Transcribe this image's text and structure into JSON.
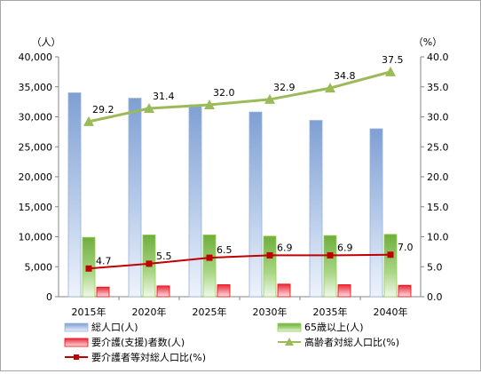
{
  "chart_data": {
    "type": "bar",
    "categories": [
      "2015年",
      "2020年",
      "2025年",
      "2030年",
      "2035年",
      "2040年"
    ],
    "left_axis": {
      "unit": "（人）",
      "ylim": [
        0,
        40000
      ],
      "ticks": [
        "0",
        "5,000",
        "10,000",
        "15,000",
        "20,000",
        "25,000",
        "30,000",
        "35,000",
        "40,000"
      ]
    },
    "right_axis": {
      "unit": "（%）",
      "ylim": [
        0,
        40
      ],
      "ticks": [
        "0.0",
        "5.0",
        "10.0",
        "15.0",
        "20.0",
        "25.0",
        "30.0",
        "35.0",
        "40.0"
      ]
    },
    "series": [
      {
        "name": "総人口(人)",
        "kind": "bar",
        "axis": "left",
        "color": "#95b3d7",
        "values": [
          34000,
          33100,
          32000,
          30800,
          29400,
          28000
        ]
      },
      {
        "name": "65歳以上(人)",
        "kind": "bar",
        "axis": "left",
        "color": "#92d050",
        "values": [
          9900,
          10300,
          10300,
          10100,
          10200,
          10400
        ]
      },
      {
        "name": "要介護(支援)者数(人)",
        "kind": "bar",
        "axis": "left",
        "color": "#ff0000",
        "values": [
          1600,
          1800,
          2000,
          2100,
          2000,
          1900
        ]
      },
      {
        "name": "高齢者対総人口比(%)",
        "kind": "line",
        "axis": "right",
        "color": "#9bbb59",
        "marker": "triangle",
        "values": [
          29.2,
          31.4,
          32.0,
          32.9,
          34.8,
          37.5
        ],
        "labels": [
          "29.2",
          "31.4",
          "32.0",
          "32.9",
          "34.8",
          "37.5"
        ]
      },
      {
        "name": "要介護者等対総人口比(%)",
        "kind": "line",
        "axis": "right",
        "color": "#c00000",
        "marker": "square",
        "values": [
          4.7,
          5.5,
          6.5,
          6.9,
          6.9,
          7.0
        ],
        "labels": [
          "4.7",
          "5.5",
          "6.5",
          "6.9",
          "6.9",
          "7.0"
        ]
      }
    ],
    "grid": false,
    "legend": "bottom"
  }
}
